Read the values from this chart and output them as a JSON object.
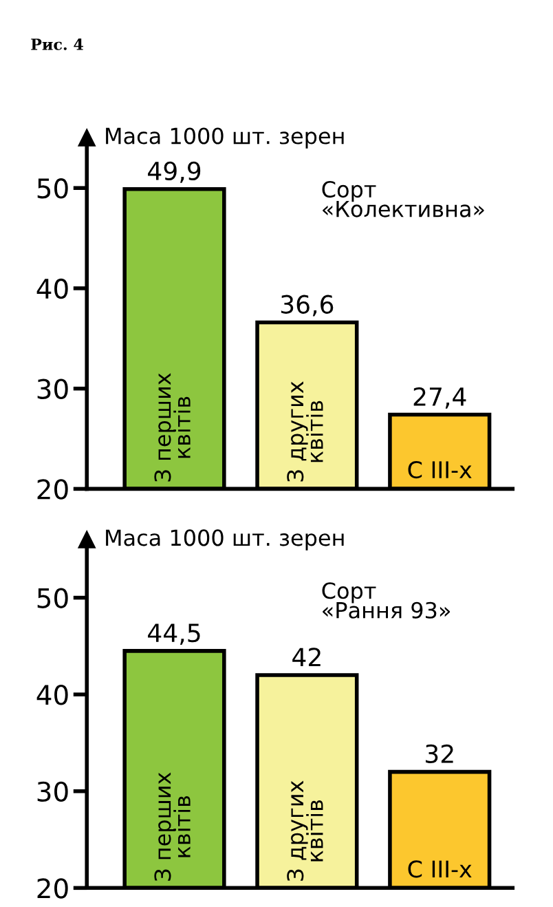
{
  "chart_data": [
    {
      "type": "bar",
      "title": "Рис. 4",
      "ylabel": "Маса 1000 шт. зерен",
      "annotations": [
        "Сорт\n«Колективна»"
      ],
      "categories": [
        "З перших\nквітів",
        "З других\nквітів",
        "С ІІІ-х"
      ],
      "values": [
        49.9,
        36.6,
        27.4
      ],
      "value_labels": [
        "49,9",
        "36,6",
        "27,4"
      ],
      "colors": [
        "#8dc63f",
        "#f6f29c",
        "#fcc72e"
      ],
      "ylim": [
        20,
        55
      ],
      "yticks": [
        20,
        30,
        40,
        50
      ],
      "grid": false
    },
    {
      "type": "bar",
      "ylabel": "Маса 1000 шт. зерен",
      "annotations": [
        "Сорт\n«Рання 93»"
      ],
      "categories": [
        "З перших\nквітів",
        "З других\nквітів",
        "С ІІІ-х"
      ],
      "values": [
        44.5,
        42,
        32
      ],
      "value_labels": [
        "44,5",
        "42",
        "32"
      ],
      "colors": [
        "#8dc63f",
        "#f6f29c",
        "#fcc72e"
      ],
      "ylim": [
        20,
        56
      ],
      "yticks": [
        20,
        30,
        40,
        50
      ],
      "grid": false
    }
  ]
}
